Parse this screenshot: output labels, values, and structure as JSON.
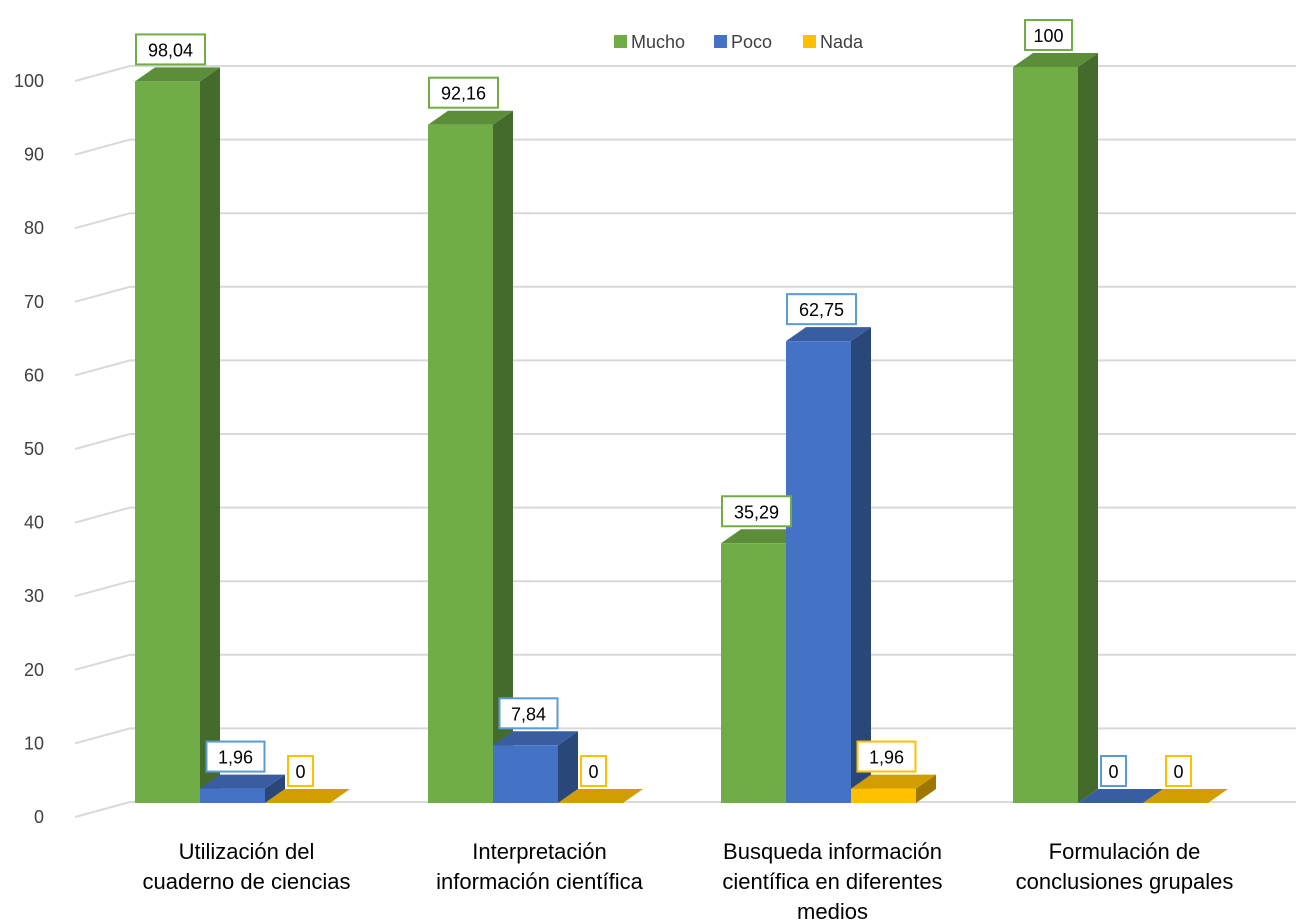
{
  "chart_data": {
    "type": "bar",
    "style": "3d-clustered-column",
    "categories": [
      [
        "Utilización del",
        "cuaderno de ciencias"
      ],
      [
        "Interpretación",
        "información científica"
      ],
      [
        "Busqueda información",
        "científica en diferentes",
        "medios"
      ],
      [
        "Formulación de",
        "conclusiones grupales"
      ]
    ],
    "series": [
      {
        "name": "Mucho",
        "color": "#70AD47",
        "values": [
          98.04,
          92.16,
          35.29,
          100
        ],
        "labels": [
          "98,04",
          "92,16",
          "35,29",
          "100"
        ]
      },
      {
        "name": "Poco",
        "color": "#4472C4",
        "values": [
          1.96,
          7.84,
          62.75,
          0
        ],
        "labels": [
          "1,96",
          "7,84",
          "62,75",
          "0"
        ]
      },
      {
        "name": "Nada",
        "color": "#FFC000",
        "values": [
          0,
          0,
          1.96,
          0
        ],
        "labels": [
          "0",
          "0",
          "1,96",
          "0"
        ]
      }
    ],
    "yticks": [
      "0",
      "10",
      "20",
      "30",
      "40",
      "50",
      "60",
      "70",
      "80",
      "90",
      "100"
    ],
    "ylim": [
      0,
      100
    ],
    "grid": true,
    "legend": "top-center",
    "title": "",
    "xlabel": "",
    "ylabel": ""
  }
}
